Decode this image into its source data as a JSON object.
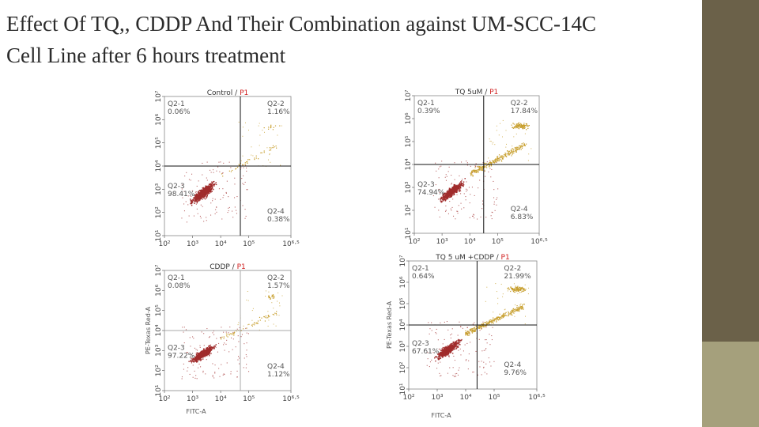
{
  "slide": {
    "title_line1": "Effect Of  TQ,, CDDP And Their Combination against  UM-SCC-14C",
    "title_line2": "Cell Line after 6 hours treatment",
    "colors": {
      "side_dark": "#6b6149",
      "side_light": "#a5a07c",
      "live": "#a02c2c",
      "apoptotic": "#c8a030"
    }
  },
  "chart_data": [
    {
      "type": "scatter",
      "title_black": "Control / ",
      "title_red": "P1",
      "xlabel": "",
      "ylabel": "",
      "x_ticks": [
        "10²",
        "10³",
        "10⁴",
        "10⁵",
        "10⁶·⁵"
      ],
      "y_ticks": [
        "10¹",
        "10²",
        "10³",
        "10⁴",
        "10⁵",
        "10⁶",
        "10⁷"
      ],
      "xlim_log10": [
        2,
        6.5
      ],
      "ylim_log10": [
        1,
        7
      ],
      "gate_log10": {
        "x": 4.7,
        "y": 4.0
      },
      "quadrants": [
        {
          "name": "Q2-1",
          "pct": "0.06%",
          "pos": "top-left"
        },
        {
          "name": "Q2-2",
          "pct": "1.16%",
          "pos": "top-right"
        },
        {
          "name": "Q2-3",
          "pct": "98.41%",
          "pos": "bottom-left"
        },
        {
          "name": "Q2-4",
          "pct": "0.38%",
          "pos": "bottom-right"
        }
      ]
    },
    {
      "type": "scatter",
      "title_black": "TQ 5uM / ",
      "title_red": "P1",
      "xlabel": "",
      "ylabel": "",
      "x_ticks": [
        "10²",
        "10³",
        "10⁴",
        "10⁵",
        "10⁶·⁵"
      ],
      "y_ticks": [
        "10¹",
        "10²",
        "10³",
        "10⁴",
        "10⁵",
        "10⁶",
        "10⁷"
      ],
      "xlim_log10": [
        2,
        6.5
      ],
      "ylim_log10": [
        1,
        7
      ],
      "gate_log10": {
        "x": 4.5,
        "y": 4.0
      },
      "quadrants": [
        {
          "name": "Q2-1",
          "pct": "0.39%",
          "pos": "top-left"
        },
        {
          "name": "Q2-2",
          "pct": "17.84%",
          "pos": "top-right"
        },
        {
          "name": "Q2-3",
          "pct": "74.94%",
          "pos": "bottom-left"
        },
        {
          "name": "Q2-4",
          "pct": "6.83%",
          "pos": "bottom-right"
        }
      ]
    },
    {
      "type": "scatter",
      "title_black": "CDDP / ",
      "title_red": "P1",
      "xlabel": "FITC-A",
      "ylabel": "PE-Texas Red-A",
      "x_ticks": [
        "10²",
        "10³",
        "10⁴",
        "10⁵",
        "10⁶·⁵"
      ],
      "y_ticks": [
        "10¹",
        "10²",
        "10³",
        "10⁴",
        "10⁵",
        "10⁶",
        "10⁷"
      ],
      "xlim_log10": [
        2,
        6.5
      ],
      "ylim_log10": [
        1,
        7
      ],
      "gate_log10": {
        "x": 4.7,
        "y": 4.0
      },
      "quadrants": [
        {
          "name": "Q2-1",
          "pct": "0.08%",
          "pos": "top-left"
        },
        {
          "name": "Q2-2",
          "pct": "1.57%",
          "pos": "top-right"
        },
        {
          "name": "Q2-3",
          "pct": "97.22%",
          "pos": "bottom-left"
        },
        {
          "name": "Q2-4",
          "pct": "1.12%",
          "pos": "bottom-right"
        }
      ]
    },
    {
      "type": "scatter",
      "title_black": "TQ 5 uM +CDDP / ",
      "title_red": "P1",
      "xlabel": "FITC-A",
      "ylabel": "PE-Texas Red-A",
      "x_ticks": [
        "10²",
        "10³",
        "10⁴",
        "10⁵",
        "10⁶·⁵"
      ],
      "y_ticks": [
        "10¹",
        "10²",
        "10³",
        "10⁴",
        "10⁵",
        "10⁶",
        "10⁷"
      ],
      "xlim_log10": [
        2,
        6.5
      ],
      "ylim_log10": [
        1,
        7
      ],
      "gate_log10": {
        "x": 4.4,
        "y": 4.0
      },
      "quadrants": [
        {
          "name": "Q2-1",
          "pct": "0.64%",
          "pos": "top-left"
        },
        {
          "name": "Q2-2",
          "pct": "21.99%",
          "pos": "top-right"
        },
        {
          "name": "Q2-3",
          "pct": "67.61%",
          "pos": "bottom-left"
        },
        {
          "name": "Q2-4",
          "pct": "9.76%",
          "pos": "bottom-right"
        }
      ]
    }
  ]
}
